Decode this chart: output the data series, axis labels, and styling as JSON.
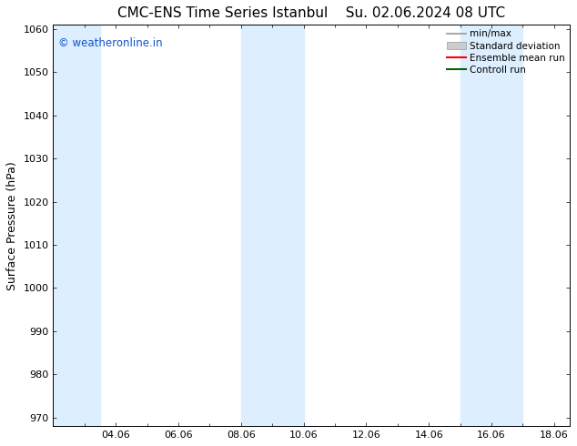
{
  "title_left": "CMC-ENS Time Series Istanbul",
  "title_right": "Su. 02.06.2024 08 UTC",
  "ylabel": "Surface Pressure (hPa)",
  "ylim": [
    968,
    1061
  ],
  "yticks": [
    970,
    980,
    990,
    1000,
    1010,
    1020,
    1030,
    1040,
    1050,
    1060
  ],
  "xlim_start": 2.0,
  "xlim_end": 18.5,
  "xtick_labels": [
    "04.06",
    "06.06",
    "08.06",
    "10.06",
    "12.06",
    "14.06",
    "16.06",
    "18.06"
  ],
  "xtick_positions": [
    4.0,
    6.0,
    8.0,
    10.0,
    12.0,
    14.0,
    16.0,
    18.0
  ],
  "shaded_bands": [
    {
      "x_start": 2.0,
      "x_end": 3.5
    },
    {
      "x_start": 8.0,
      "x_end": 10.0
    },
    {
      "x_start": 15.0,
      "x_end": 17.0
    }
  ],
  "shade_color": "#ddeeff",
  "background_color": "#ffffff",
  "watermark_text": "© weatheronline.in",
  "watermark_color": "#1155cc",
  "legend_items": [
    {
      "label": "min/max",
      "color": "#aaaaaa",
      "style": "line"
    },
    {
      "label": "Standard deviation",
      "color": "#cccccc",
      "style": "fill"
    },
    {
      "label": "Ensemble mean run",
      "color": "#ff0000",
      "style": "line"
    },
    {
      "label": "Controll run",
      "color": "#006600",
      "style": "line"
    }
  ],
  "title_fontsize": 11,
  "tick_fontsize": 8,
  "ylabel_fontsize": 9,
  "legend_fontsize": 7.5
}
